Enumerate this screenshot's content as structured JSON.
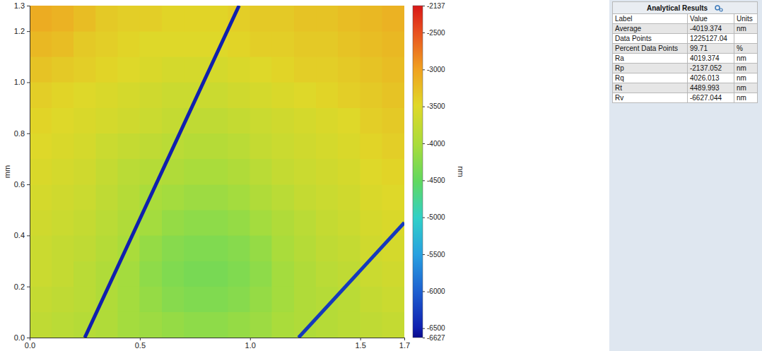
{
  "chart_data": {
    "type": "heatmap",
    "y_label": "mm",
    "xlim": [
      0,
      1.7
    ],
    "xticks": [
      {
        "value": 0,
        "label": "0.0"
      },
      0.5,
      {
        "value": 1,
        "label": "1.0"
      },
      1.5,
      1.7
    ],
    "ylim": [
      0,
      1.3
    ],
    "yticks": [
      {
        "value": 0,
        "label": "0.0"
      },
      0.2,
      0.4,
      0.6,
      0.8,
      {
        "value": 1,
        "label": "1.0"
      },
      1.2,
      1.3
    ],
    "x_bins": [
      0,
      0.1,
      0.2,
      0.3,
      0.4,
      0.5,
      0.6,
      0.7,
      0.8,
      0.9,
      1.0,
      1.1,
      1.2,
      1.3,
      1.4,
      1.5,
      1.6,
      1.7
    ],
    "y_bins": [
      0,
      0.1,
      0.2,
      0.3,
      0.4,
      0.5,
      0.6,
      0.7,
      0.8,
      0.9,
      1.0,
      1.1,
      1.2,
      1.3
    ],
    "values": [
      [
        -3800,
        -3850,
        -3900,
        -3950,
        -4050,
        -4100,
        -4150,
        -4200,
        -4200,
        -4150,
        -4100,
        -4000,
        -3950,
        -3900,
        -3850,
        -3800,
        -3750
      ],
      [
        -3750,
        -3800,
        -3850,
        -3950,
        -4050,
        -4150,
        -4250,
        -4300,
        -4300,
        -4250,
        -4150,
        -4050,
        -3950,
        -3900,
        -3850,
        -3750,
        -3700
      ],
      [
        -3700,
        -3750,
        -3850,
        -3950,
        -4050,
        -4200,
        -4300,
        -4350,
        -4350,
        -4300,
        -4200,
        -4050,
        -3950,
        -3850,
        -3800,
        -3700,
        -3650
      ],
      [
        -3700,
        -3750,
        -3800,
        -3900,
        -4000,
        -4150,
        -4250,
        -4300,
        -4300,
        -4250,
        -4150,
        -4000,
        -3900,
        -3800,
        -3750,
        -3650,
        -3600
      ],
      [
        -3650,
        -3700,
        -3750,
        -3850,
        -3950,
        -4050,
        -4150,
        -4200,
        -4200,
        -4150,
        -4050,
        -3950,
        -3850,
        -3750,
        -3700,
        -3600,
        -3550
      ],
      [
        -3600,
        -3650,
        -3700,
        -3800,
        -3900,
        -4000,
        -4050,
        -4100,
        -4100,
        -4050,
        -3950,
        -3850,
        -3750,
        -3700,
        -3650,
        -3550,
        -3500
      ],
      [
        -3550,
        -3600,
        -3650,
        -3750,
        -3850,
        -3900,
        -3950,
        -4000,
        -4000,
        -3950,
        -3850,
        -3750,
        -3700,
        -3650,
        -3600,
        -3500,
        -3450
      ],
      [
        -3500,
        -3550,
        -3600,
        -3700,
        -3750,
        -3800,
        -3850,
        -3900,
        -3900,
        -3850,
        -3750,
        -3700,
        -3650,
        -3600,
        -3550,
        -3450,
        -3400
      ],
      [
        -3450,
        -3500,
        -3550,
        -3600,
        -3650,
        -3700,
        -3750,
        -3800,
        -3800,
        -3750,
        -3700,
        -3650,
        -3600,
        -3550,
        -3500,
        -3400,
        -3350
      ],
      [
        -3400,
        -3450,
        -3500,
        -3550,
        -3600,
        -3650,
        -3700,
        -3700,
        -3700,
        -3650,
        -3600,
        -3550,
        -3500,
        -3450,
        -3400,
        -3350,
        -3300
      ],
      [
        -3300,
        -3350,
        -3400,
        -3450,
        -3500,
        -3550,
        -3600,
        -3600,
        -3600,
        -3550,
        -3500,
        -3450,
        -3400,
        -3400,
        -3350,
        -3300,
        -3250
      ],
      [
        -3200,
        -3250,
        -3350,
        -3400,
        -3450,
        -3500,
        -3500,
        -3500,
        -3500,
        -3450,
        -3400,
        -3400,
        -3350,
        -3350,
        -3300,
        -3250,
        -3200
      ],
      [
        -3100,
        -3150,
        -3250,
        -3350,
        -3400,
        -3400,
        -3450,
        -3450,
        -3450,
        -3400,
        -3350,
        -3350,
        -3300,
        -3300,
        -3250,
        -3200,
        -3150
      ]
    ],
    "scratches": [
      {
        "x": [
          0.25,
          0.95
        ],
        "y": [
          0,
          1.3
        ],
        "depth": -6500
      },
      {
        "x": [
          1.22,
          1.7
        ],
        "y": [
          0,
          0.45
        ],
        "depth": -6300
      }
    ],
    "colorbar": {
      "label": "nm",
      "lim": [
        -6627,
        -2137
      ],
      "ticks": [
        -2137,
        -2500,
        -3000,
        -3500,
        -4000,
        -4500,
        -5000,
        -5500,
        -6000,
        -6500,
        -6627
      ]
    }
  },
  "table": {
    "title": "Analytical Results",
    "columns": [
      "Label",
      "Value",
      "Units"
    ],
    "rows": [
      [
        "Average",
        "-4019.374",
        "nm"
      ],
      [
        "Data Points",
        "1225127.04",
        null
      ],
      [
        "Percent Data Points",
        "99.71",
        "%"
      ],
      [
        "Ra",
        "4019.374",
        "nm"
      ],
      [
        "Rp",
        "-2137.052",
        "nm"
      ],
      [
        "Rq",
        "4026.013",
        "nm"
      ],
      [
        "Rt",
        "4489.993",
        "nm"
      ],
      [
        "Rv",
        "-6627.044",
        "nm"
      ]
    ]
  }
}
